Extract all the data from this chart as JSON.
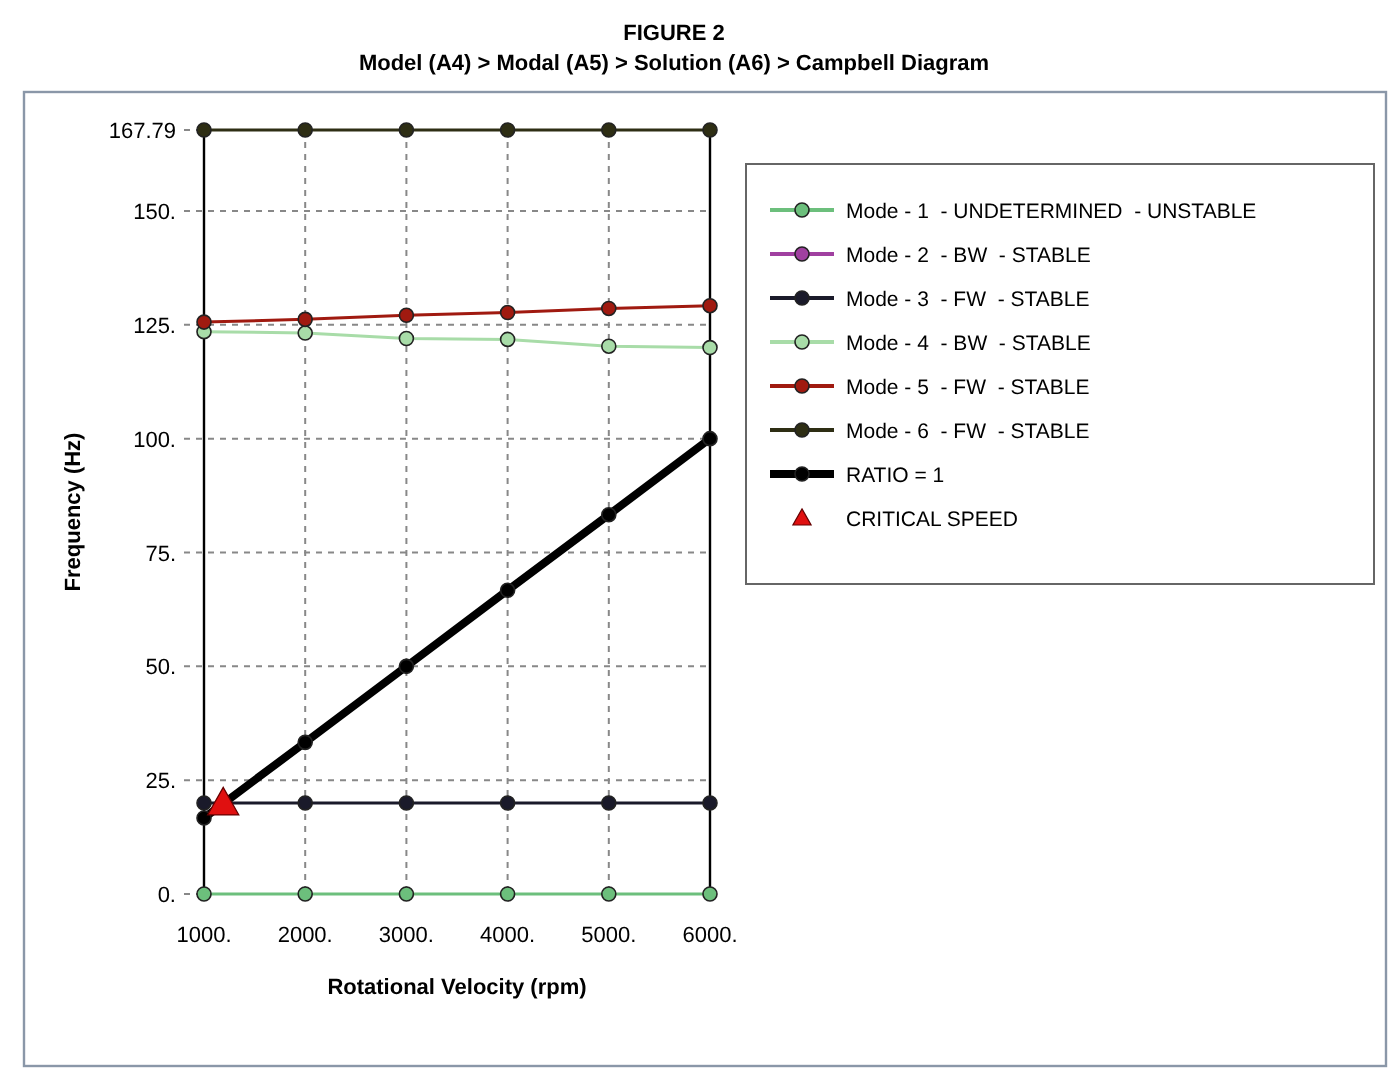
{
  "chart_data": {
    "type": "line",
    "title": "FIGURE 2",
    "subtitle": "Model (A4) > Modal (A5) > Solution (A6) > Campbell Diagram",
    "xlabel": "Rotational Velocity (rpm)",
    "ylabel": "Frequency (Hz)",
    "x": [
      1000,
      2000,
      3000,
      4000,
      5000,
      6000
    ],
    "series": [
      {
        "name": "Mode - 1  - UNDETERMINED  - UNSTABLE",
        "color": "#6cbf7c",
        "values": [
          0,
          0,
          0,
          0,
          0,
          0
        ]
      },
      {
        "name": "Mode - 2  - BW  - STABLE",
        "color": "#a040a0",
        "values": [
          null,
          null,
          null,
          null,
          null,
          null
        ]
      },
      {
        "name": "Mode - 3  - FW  - STABLE",
        "color": "#1a1a2a",
        "values": [
          20,
          20,
          20,
          20,
          20,
          20
        ]
      },
      {
        "name": "Mode - 4  - BW  - STABLE",
        "color": "#a8dca8",
        "values": [
          123.5,
          123.2,
          122,
          121.8,
          120.3,
          120
        ]
      },
      {
        "name": "Mode - 5  - FW  - STABLE",
        "color": "#a01a10",
        "values": [
          125.6,
          126.2,
          127.1,
          127.7,
          128.6,
          129.2
        ]
      },
      {
        "name": "Mode - 6  - FW  - STABLE",
        "color": "#2e2e14",
        "values": [
          167.79,
          167.79,
          167.79,
          167.79,
          167.79,
          167.79
        ]
      },
      {
        "name": "RATIO = 1",
        "color": "#000000",
        "values": [
          16.7,
          33.3,
          50,
          66.7,
          83.3,
          100
        ]
      },
      {
        "name": "CRITICAL SPEED",
        "type": "scatter",
        "marker": "triangle",
        "color": "#e01010",
        "x": [
          1190
        ],
        "values": [
          20
        ]
      }
    ],
    "xlim": [
      1000,
      6000
    ],
    "xticks": [
      {
        "value": 1000,
        "label": "1000."
      },
      {
        "value": 2000,
        "label": "2000."
      },
      {
        "value": 3000,
        "label": "3000."
      },
      {
        "value": 4000,
        "label": "4000."
      },
      {
        "value": 5000,
        "label": "5000."
      },
      {
        "value": 6000,
        "label": "6000."
      }
    ],
    "ylim": [
      0,
      167.79
    ],
    "yticks": [
      {
        "value": 0,
        "label": "0."
      },
      {
        "value": 25,
        "label": "25."
      },
      {
        "value": 50,
        "label": "50."
      },
      {
        "value": 75,
        "label": "75."
      },
      {
        "value": 100,
        "label": "100."
      },
      {
        "value": 125,
        "label": "125."
      },
      {
        "value": 150,
        "label": "150."
      },
      167.79
    ],
    "grid": true,
    "legend": "right",
    "marker": "circle",
    "line_style": "solid"
  }
}
